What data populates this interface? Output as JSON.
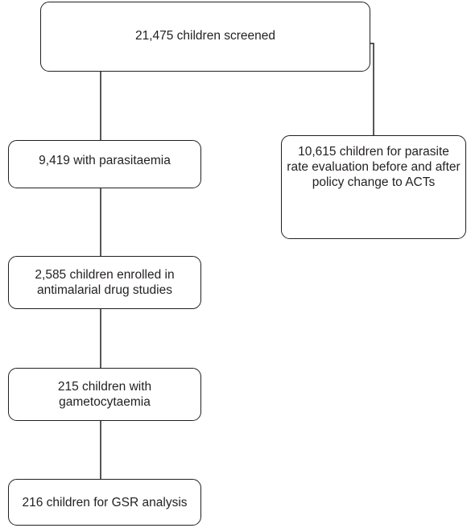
{
  "flowchart": {
    "screened": "21,475 children screened",
    "parasitaemia": "9,419 with parasitaemia",
    "policy_change": "10,615 children for parasite rate evaluation before and after policy change to ACTs",
    "enrolled": "2,585 children enrolled in antimalarial drug studies",
    "gametocytaemia": "215 children with gametocytaemia",
    "gsr_analysis": "216 children for GSR analysis"
  }
}
